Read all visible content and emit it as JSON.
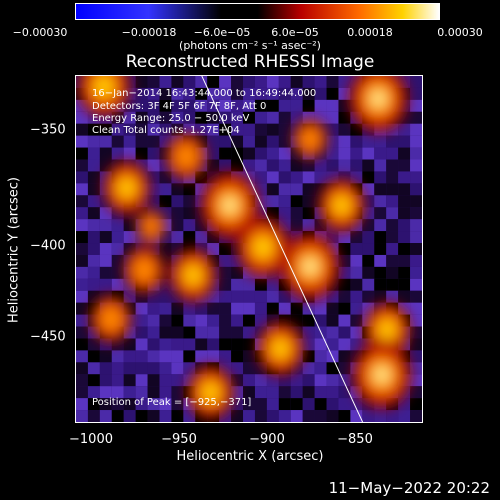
{
  "chart_data": {
    "type": "heatmap",
    "title": "Reconstructed RHESSI Image",
    "xlabel": "Heliocentric X (arcsec)",
    "ylabel": "Heliocentric Y (arcsec)",
    "xlim": [
      -1004,
      -806
    ],
    "ylim": [
      -497,
      -299
    ],
    "x_ticks": [
      "−1000",
      "−950",
      "−900",
      "−850"
    ],
    "x_tick_values": [
      -1000,
      -950,
      -900,
      -850
    ],
    "y_ticks": [
      "−350",
      "−400",
      "−450"
    ],
    "y_tick_values": [
      -350,
      -400,
      -450
    ],
    "colorbar": {
      "range": [
        -0.0003,
        0.0003
      ],
      "ticks": [
        "−0.00030",
        "−0.00018",
        "−6.0e−05",
        "6.0e−05",
        "0.00018",
        "0.00030"
      ],
      "tick_values": [
        -0.0003,
        -0.00018,
        -6e-05,
        6e-05,
        0.00018,
        0.0003
      ],
      "units": "(photons cm⁻² s⁻¹ asec⁻²)"
    },
    "annotations": {
      "time": "16−Jan−2014 16:43:44.000 to 16:49:44.000",
      "detectors": "Detectors: 3F 4F 5F 6F 7F 8F, Att 0",
      "energy": "Energy Range: 25.0 − 50.0 keV",
      "clean": "Clean    Total counts: 1.27E+04",
      "peak": "Position of Peak = [−925,−371]"
    },
    "sources": [
      {
        "x": -916,
        "y": -373,
        "level": 1.0
      },
      {
        "x": -988,
        "y": -305,
        "level": 0.9
      },
      {
        "x": -941,
        "y": -345,
        "level": 0.7
      },
      {
        "x": -831,
        "y": -312,
        "level": 1.0
      },
      {
        "x": -852,
        "y": -373,
        "level": 0.8
      },
      {
        "x": -870,
        "y": -408,
        "level": 1.0
      },
      {
        "x": -897,
        "y": -397,
        "level": 0.9
      },
      {
        "x": -937,
        "y": -413,
        "level": 0.8
      },
      {
        "x": -975,
        "y": -363,
        "level": 0.8
      },
      {
        "x": -965,
        "y": -410,
        "level": 0.7
      },
      {
        "x": -826,
        "y": -444,
        "level": 0.8
      },
      {
        "x": -829,
        "y": -470,
        "level": 1.0
      },
      {
        "x": -887,
        "y": -455,
        "level": 0.8
      },
      {
        "x": -927,
        "y": -480,
        "level": 0.8
      },
      {
        "x": -984,
        "y": -438,
        "level": 0.7
      },
      {
        "x": -961,
        "y": -385,
        "level": 0.5
      },
      {
        "x": -870,
        "y": -335,
        "level": 0.6
      }
    ],
    "limb_line": {
      "x": [
        -932,
        -840
      ],
      "y": [
        -299,
        -497
      ]
    }
  },
  "footer": {
    "date": "11−May−2022 20:22"
  }
}
